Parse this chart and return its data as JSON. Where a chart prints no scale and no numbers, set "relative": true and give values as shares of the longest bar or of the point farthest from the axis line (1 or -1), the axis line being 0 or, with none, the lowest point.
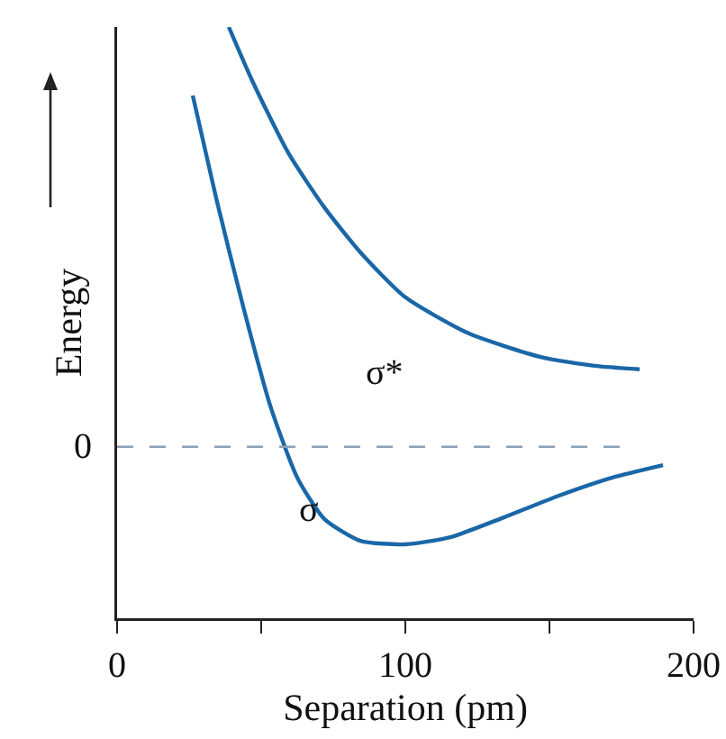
{
  "chart_data": {
    "type": "line",
    "relative": true,
    "xlabel": "Separation (pm)",
    "ylabel": "Energy",
    "xlim": [
      0,
      200
    ],
    "xticks": [
      0,
      {
        "value": 50,
        "label": null
      },
      100,
      {
        "value": 150,
        "label": null
      },
      200
    ],
    "grid": false,
    "legend": false,
    "marker": "none",
    "line_style": "solid",
    "ref_lines": [
      {
        "axis": "y",
        "value": 0.29,
        "label": "0",
        "color": "#8aa0b8",
        "line_style": "dashed"
      }
    ],
    "series": [
      {
        "name": "σ*",
        "color": "#1a67a8",
        "x": [
          38.75,
          46.9,
          59.4,
          71.9,
          84.4,
          100,
          121.9,
          146.9,
          165.6,
          181.3
        ],
        "values": [
          1.0,
          0.909,
          0.787,
          0.695,
          0.619,
          0.543,
          0.482,
          0.442,
          0.427,
          0.421
        ]
      },
      {
        "name": "σ",
        "color": "#1a67a8",
        "x": [
          26.25,
          34.4,
          43.75,
          53.1,
          62.5,
          71.9,
          84.4,
          100,
          115.6,
          134.4,
          153.1,
          171.9,
          189.4
        ],
        "values": [
          0.884,
          0.71,
          0.527,
          0.36,
          0.238,
          0.168,
          0.131,
          0.125,
          0.137,
          0.171,
          0.207,
          0.238,
          0.259
        ]
      }
    ]
  }
}
